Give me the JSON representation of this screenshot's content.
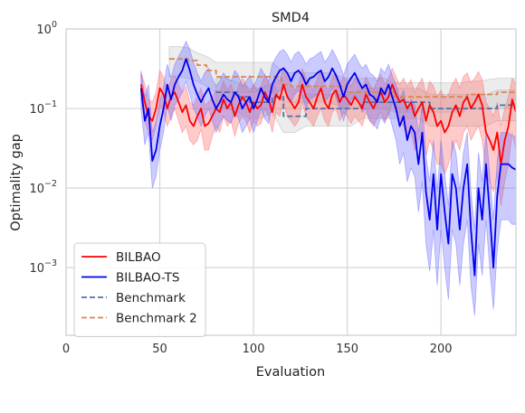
{
  "chart_data": {
    "type": "line",
    "title": "SMD4",
    "xlabel": "Evaluation",
    "ylabel": "Optimality gap",
    "yscale": "log",
    "xlim": [
      0,
      240
    ],
    "ylim_exponents": [
      -3.85,
      0
    ],
    "grid": true,
    "legend_position": "lower-left",
    "x_ticks": [
      {
        "value": 0,
        "label": "0"
      },
      {
        "value": 50,
        "label": "50"
      },
      {
        "value": 100,
        "label": "100"
      },
      {
        "value": 150,
        "label": "150"
      },
      {
        "value": 200,
        "label": "200"
      }
    ],
    "y_ticks": [
      {
        "exp": 0,
        "base": "10",
        "sup": "0"
      },
      {
        "exp": -1,
        "base": "10",
        "sup": "−1"
      },
      {
        "exp": -2,
        "base": "10",
        "sup": "−2"
      },
      {
        "exp": -3,
        "base": "10",
        "sup": "−3"
      }
    ],
    "series": [
      {
        "name": "BILBAO",
        "color": "#ff0000",
        "style": "solid",
        "band_color": "#ff6666",
        "x": [
          40,
          42,
          44,
          46,
          48,
          50,
          52,
          54,
          56,
          58,
          60,
          62,
          64,
          66,
          68,
          70,
          72,
          74,
          76,
          78,
          80,
          82,
          84,
          86,
          88,
          90,
          92,
          94,
          96,
          98,
          100,
          102,
          104,
          106,
          108,
          110,
          112,
          114,
          116,
          118,
          120,
          122,
          124,
          126,
          128,
          130,
          132,
          134,
          136,
          138,
          140,
          142,
          144,
          146,
          148,
          150,
          152,
          154,
          156,
          158,
          160,
          162,
          164,
          166,
          168,
          170,
          172,
          174,
          176,
          178,
          180,
          182,
          184,
          186,
          188,
          190,
          192,
          194,
          196,
          198,
          200,
          202,
          204,
          206,
          208,
          210,
          212,
          214,
          216,
          218,
          220,
          222,
          224,
          226,
          228,
          230,
          232,
          234,
          236,
          238,
          240
        ],
        "y": [
          0.2,
          0.12,
          0.08,
          0.07,
          0.1,
          0.18,
          0.15,
          0.1,
          0.14,
          0.16,
          0.12,
          0.09,
          0.11,
          0.07,
          0.06,
          0.08,
          0.1,
          0.06,
          0.065,
          0.08,
          0.1,
          0.09,
          0.13,
          0.1,
          0.12,
          0.08,
          0.11,
          0.14,
          0.12,
          0.09,
          0.12,
          0.1,
          0.11,
          0.16,
          0.13,
          0.09,
          0.15,
          0.13,
          0.2,
          0.14,
          0.12,
          0.1,
          0.12,
          0.2,
          0.14,
          0.12,
          0.1,
          0.14,
          0.18,
          0.12,
          0.1,
          0.15,
          0.17,
          0.12,
          0.15,
          0.13,
          0.11,
          0.14,
          0.12,
          0.1,
          0.15,
          0.12,
          0.1,
          0.13,
          0.16,
          0.12,
          0.14,
          0.2,
          0.15,
          0.12,
          0.13,
          0.1,
          0.12,
          0.08,
          0.1,
          0.12,
          0.07,
          0.11,
          0.09,
          0.06,
          0.07,
          0.05,
          0.06,
          0.09,
          0.11,
          0.08,
          0.12,
          0.14,
          0.1,
          0.12,
          0.15,
          0.11,
          0.05,
          0.04,
          0.03,
          0.05,
          0.02,
          0.04,
          0.06,
          0.13,
          0.09
        ],
        "lower": [
          0.13,
          0.07,
          0.05,
          0.04,
          0.06,
          0.11,
          0.09,
          0.06,
          0.08,
          0.1,
          0.07,
          0.05,
          0.06,
          0.04,
          0.035,
          0.04,
          0.055,
          0.03,
          0.03,
          0.045,
          0.06,
          0.05,
          0.08,
          0.06,
          0.07,
          0.045,
          0.065,
          0.08,
          0.07,
          0.05,
          0.07,
          0.06,
          0.065,
          0.1,
          0.08,
          0.05,
          0.09,
          0.08,
          0.12,
          0.08,
          0.07,
          0.06,
          0.07,
          0.12,
          0.08,
          0.07,
          0.06,
          0.08,
          0.1,
          0.07,
          0.06,
          0.09,
          0.1,
          0.07,
          0.09,
          0.08,
          0.065,
          0.08,
          0.07,
          0.06,
          0.09,
          0.07,
          0.06,
          0.075,
          0.09,
          0.07,
          0.08,
          0.12,
          0.09,
          0.07,
          0.06,
          0.045,
          0.05,
          0.03,
          0.04,
          0.05,
          0.025,
          0.04,
          0.03,
          0.02,
          0.02,
          0.015,
          0.02,
          0.03,
          0.04,
          0.03,
          0.05,
          0.06,
          0.04,
          0.05,
          0.06,
          0.04,
          0.015,
          0.012,
          0.009,
          0.015,
          0.006,
          0.012,
          0.02,
          0.05,
          0.03
        ],
        "upper": [
          0.28,
          0.2,
          0.13,
          0.12,
          0.16,
          0.3,
          0.25,
          0.17,
          0.23,
          0.26,
          0.2,
          0.16,
          0.19,
          0.12,
          0.11,
          0.14,
          0.18,
          0.11,
          0.12,
          0.14,
          0.17,
          0.16,
          0.22,
          0.17,
          0.2,
          0.14,
          0.19,
          0.24,
          0.2,
          0.16,
          0.2,
          0.17,
          0.19,
          0.27,
          0.22,
          0.16,
          0.25,
          0.22,
          0.33,
          0.24,
          0.2,
          0.17,
          0.2,
          0.32,
          0.24,
          0.2,
          0.17,
          0.24,
          0.3,
          0.2,
          0.17,
          0.25,
          0.28,
          0.2,
          0.25,
          0.22,
          0.19,
          0.24,
          0.2,
          0.17,
          0.25,
          0.2,
          0.17,
          0.22,
          0.27,
          0.2,
          0.24,
          0.32,
          0.25,
          0.2,
          0.24,
          0.19,
          0.23,
          0.16,
          0.2,
          0.24,
          0.15,
          0.22,
          0.19,
          0.14,
          0.17,
          0.13,
          0.15,
          0.2,
          0.24,
          0.18,
          0.25,
          0.28,
          0.21,
          0.24,
          0.29,
          0.23,
          0.12,
          0.1,
          0.08,
          0.12,
          0.06,
          0.1,
          0.14,
          0.24,
          0.2
        ]
      },
      {
        "name": "BILBAO-TS",
        "color": "#0000ee",
        "style": "solid",
        "band_color": "#6a6aff",
        "x": [
          40,
          42,
          44,
          46,
          48,
          50,
          52,
          54,
          56,
          58,
          60,
          62,
          64,
          66,
          68,
          70,
          72,
          74,
          76,
          78,
          80,
          82,
          84,
          86,
          88,
          90,
          92,
          94,
          96,
          98,
          100,
          102,
          104,
          106,
          108,
          110,
          112,
          114,
          116,
          118,
          120,
          122,
          124,
          126,
          128,
          130,
          132,
          134,
          136,
          138,
          140,
          142,
          144,
          146,
          148,
          150,
          152,
          154,
          156,
          158,
          160,
          162,
          164,
          166,
          168,
          170,
          172,
          174,
          176,
          178,
          180,
          182,
          184,
          186,
          188,
          190,
          192,
          194,
          196,
          198,
          200,
          202,
          204,
          206,
          208,
          210,
          212,
          214,
          216,
          218,
          220,
          222,
          224,
          226,
          228,
          230,
          232,
          234,
          236,
          238,
          240
        ],
        "y": [
          0.18,
          0.07,
          0.1,
          0.022,
          0.03,
          0.06,
          0.1,
          0.2,
          0.13,
          0.2,
          0.25,
          0.3,
          0.42,
          0.3,
          0.2,
          0.15,
          0.12,
          0.15,
          0.18,
          0.13,
          0.1,
          0.12,
          0.15,
          0.13,
          0.12,
          0.16,
          0.14,
          0.1,
          0.12,
          0.14,
          0.1,
          0.13,
          0.18,
          0.14,
          0.12,
          0.2,
          0.25,
          0.3,
          0.32,
          0.28,
          0.22,
          0.28,
          0.3,
          0.26,
          0.2,
          0.24,
          0.25,
          0.28,
          0.3,
          0.22,
          0.25,
          0.32,
          0.26,
          0.2,
          0.14,
          0.2,
          0.24,
          0.28,
          0.22,
          0.18,
          0.2,
          0.15,
          0.14,
          0.12,
          0.18,
          0.15,
          0.2,
          0.14,
          0.1,
          0.06,
          0.08,
          0.04,
          0.06,
          0.05,
          0.02,
          0.05,
          0.009,
          0.004,
          0.015,
          0.003,
          0.015,
          0.005,
          0.002,
          0.015,
          0.01,
          0.003,
          0.01,
          0.02,
          0.003,
          0.0008,
          0.01,
          0.004,
          0.02,
          0.005,
          0.001,
          0.008,
          0.02,
          0.02,
          0.02,
          0.018,
          0.017
        ],
        "lower": [
          0.1,
          0.035,
          0.05,
          0.01,
          0.014,
          0.03,
          0.05,
          0.11,
          0.07,
          0.11,
          0.13,
          0.16,
          0.22,
          0.15,
          0.1,
          0.08,
          0.06,
          0.08,
          0.1,
          0.07,
          0.05,
          0.065,
          0.08,
          0.07,
          0.065,
          0.09,
          0.075,
          0.05,
          0.06,
          0.075,
          0.05,
          0.07,
          0.1,
          0.075,
          0.065,
          0.11,
          0.14,
          0.17,
          0.18,
          0.15,
          0.12,
          0.15,
          0.17,
          0.14,
          0.1,
          0.13,
          0.14,
          0.15,
          0.17,
          0.12,
          0.14,
          0.18,
          0.14,
          0.1,
          0.07,
          0.1,
          0.13,
          0.15,
          0.12,
          0.09,
          0.1,
          0.07,
          0.065,
          0.055,
          0.08,
          0.065,
          0.09,
          0.06,
          0.04,
          0.02,
          0.028,
          0.012,
          0.018,
          0.014,
          0.005,
          0.012,
          0.002,
          0.0009,
          0.003,
          0.0006,
          0.003,
          0.001,
          0.0004,
          0.003,
          0.002,
          0.0006,
          0.002,
          0.004,
          0.0006,
          0.00025,
          0.002,
          0.0008,
          0.004,
          0.001,
          0.0003,
          0.0016,
          0.004,
          0.004,
          0.004,
          0.0035,
          0.0035
        ],
        "upper": [
          0.3,
          0.14,
          0.2,
          0.05,
          0.07,
          0.12,
          0.19,
          0.36,
          0.24,
          0.36,
          0.45,
          0.55,
          0.7,
          0.55,
          0.38,
          0.28,
          0.22,
          0.28,
          0.32,
          0.24,
          0.19,
          0.22,
          0.28,
          0.24,
          0.22,
          0.3,
          0.26,
          0.19,
          0.22,
          0.26,
          0.19,
          0.24,
          0.32,
          0.26,
          0.22,
          0.36,
          0.44,
          0.52,
          0.55,
          0.48,
          0.38,
          0.48,
          0.52,
          0.45,
          0.36,
          0.42,
          0.44,
          0.48,
          0.52,
          0.38,
          0.44,
          0.55,
          0.45,
          0.36,
          0.26,
          0.36,
          0.42,
          0.48,
          0.38,
          0.32,
          0.36,
          0.28,
          0.26,
          0.22,
          0.32,
          0.28,
          0.36,
          0.26,
          0.2,
          0.13,
          0.17,
          0.09,
          0.13,
          0.11,
          0.05,
          0.11,
          0.025,
          0.012,
          0.04,
          0.009,
          0.04,
          0.015,
          0.006,
          0.04,
          0.028,
          0.009,
          0.028,
          0.05,
          0.009,
          0.003,
          0.028,
          0.012,
          0.05,
          0.015,
          0.004,
          0.022,
          0.05,
          0.05,
          0.05,
          0.045,
          0.045
        ]
      },
      {
        "name": "Benchmark",
        "color": "#4c72b0",
        "style": "dashed",
        "band_color": "#aaaaaa",
        "x": [
          80,
          86,
          92,
          98,
          104,
          110,
          116,
          122,
          128,
          134,
          140,
          146,
          152,
          158,
          164,
          170,
          176,
          182,
          188,
          194,
          200,
          206,
          212,
          218,
          224,
          230,
          236,
          240
        ],
        "y": [
          0.16,
          0.16,
          0.14,
          0.12,
          0.12,
          0.14,
          0.08,
          0.08,
          0.1,
          0.1,
          0.1,
          0.1,
          0.1,
          0.12,
          0.12,
          0.12,
          0.12,
          0.12,
          0.12,
          0.1,
          0.1,
          0.1,
          0.1,
          0.1,
          0.1,
          0.11,
          0.11,
          0.11
        ],
        "lower": [
          0.1,
          0.1,
          0.09,
          0.075,
          0.075,
          0.09,
          0.05,
          0.05,
          0.06,
          0.06,
          0.06,
          0.06,
          0.06,
          0.075,
          0.075,
          0.075,
          0.075,
          0.075,
          0.075,
          0.06,
          0.06,
          0.06,
          0.06,
          0.06,
          0.06,
          0.07,
          0.07,
          0.07
        ],
        "upper": [
          0.24,
          0.24,
          0.21,
          0.18,
          0.18,
          0.21,
          0.12,
          0.12,
          0.15,
          0.15,
          0.15,
          0.15,
          0.15,
          0.18,
          0.18,
          0.18,
          0.18,
          0.18,
          0.18,
          0.15,
          0.15,
          0.15,
          0.15,
          0.15,
          0.15,
          0.17,
          0.17,
          0.17
        ]
      },
      {
        "name": "Benchmark 2",
        "color": "#dd8452",
        "style": "dashed",
        "band_color": "#aaaaaa",
        "x": [
          55,
          60,
          65,
          70,
          75,
          80,
          90,
          100,
          110,
          115,
          120,
          130,
          140,
          150,
          160,
          170,
          175,
          180,
          190,
          200,
          212,
          214,
          220,
          230,
          240
        ],
        "y": [
          0.42,
          0.42,
          0.4,
          0.35,
          0.3,
          0.25,
          0.25,
          0.25,
          0.25,
          0.2,
          0.19,
          0.19,
          0.19,
          0.16,
          0.16,
          0.16,
          0.14,
          0.14,
          0.14,
          0.14,
          0.14,
          0.15,
          0.15,
          0.16,
          0.16
        ],
        "lower": [
          0.25,
          0.25,
          0.24,
          0.22,
          0.19,
          0.16,
          0.16,
          0.16,
          0.16,
          0.13,
          0.12,
          0.12,
          0.12,
          0.1,
          0.1,
          0.1,
          0.09,
          0.09,
          0.09,
          0.09,
          0.09,
          0.1,
          0.1,
          0.1,
          0.1
        ],
        "upper": [
          0.6,
          0.6,
          0.58,
          0.5,
          0.45,
          0.38,
          0.38,
          0.38,
          0.38,
          0.3,
          0.28,
          0.28,
          0.28,
          0.24,
          0.24,
          0.24,
          0.21,
          0.21,
          0.21,
          0.21,
          0.21,
          0.22,
          0.22,
          0.24,
          0.24
        ]
      }
    ]
  }
}
